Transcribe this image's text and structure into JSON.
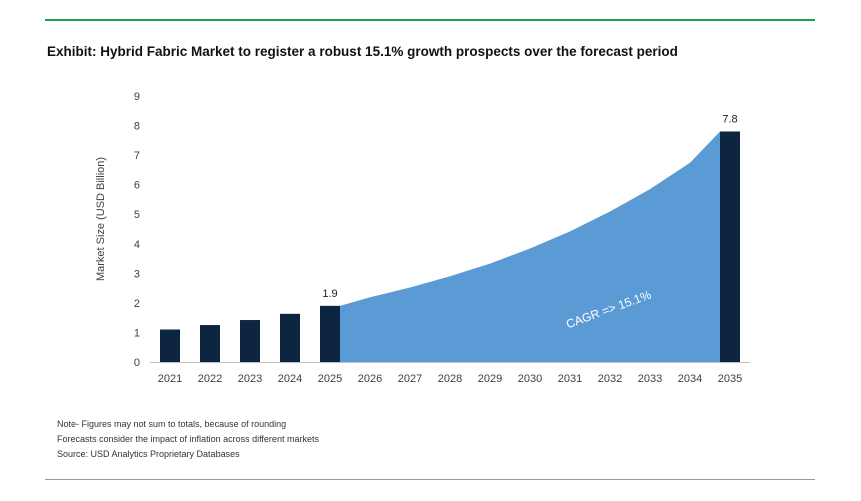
{
  "title": "Exhibit: Hybrid Fabric Market to register a robust 15.1% growth prospects over the forecast period",
  "notes": [
    "Note- Figures may not sum to totals, because of rounding",
    "Forecasts consider the impact of inflation across different markets",
    "Source: USD Analytics Proprietary Databases"
  ],
  "colors": {
    "top_rule": "#1a9e48",
    "bar": "#0d2540",
    "area": "#5b9bd5",
    "axis": "#bfbfbf"
  },
  "chart_data": {
    "type": "bar",
    "categories": [
      "2021",
      "2022",
      "2023",
      "2024",
      "2025",
      "2026",
      "2027",
      "2028",
      "2029",
      "2030",
      "2031",
      "2032",
      "2033",
      "2034",
      "2035"
    ],
    "series": [
      {
        "type": "bar",
        "values": [
          1.1,
          1.25,
          1.42,
          1.63,
          1.9,
          null,
          null,
          null,
          null,
          null,
          null,
          null,
          null,
          null,
          7.8
        ]
      },
      {
        "type": "area",
        "values": [
          null,
          null,
          null,
          null,
          1.9,
          2.19,
          2.52,
          2.9,
          3.33,
          3.84,
          4.42,
          5.09,
          5.85,
          6.74,
          7.8
        ]
      }
    ],
    "data_labels": [
      {
        "category": "2025",
        "text": "1.9"
      },
      {
        "category": "2035",
        "text": "7.8"
      }
    ],
    "annotation": {
      "text": "CAGR => 15.1%",
      "category": "2032",
      "value": 1.65
    },
    "ylabel": "Market Size (USD Billion)",
    "xlabel": "",
    "ylim": [
      0,
      9
    ],
    "yticks": [
      0,
      1,
      2,
      3,
      4,
      5,
      6,
      7,
      8,
      9
    ],
    "grid": false
  }
}
